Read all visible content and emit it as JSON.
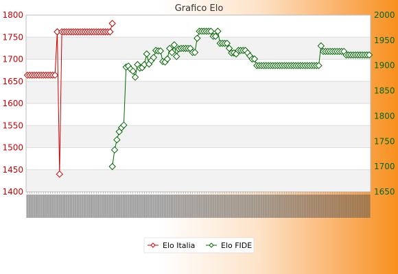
{
  "chart_data": {
    "type": "line",
    "title": "Grafico Elo",
    "xlabel": "",
    "ylabel_left": "",
    "ylabel_right": "",
    "y_left": {
      "lim": [
        1400,
        1800
      ],
      "ticks": [
        1400,
        1450,
        1500,
        1550,
        1600,
        1650,
        1700,
        1750,
        1800
      ]
    },
    "y_right": {
      "lim": [
        1650,
        2000
      ],
      "ticks": [
        1650,
        1700,
        1750,
        1800,
        1850,
        1900,
        1950,
        2000
      ]
    },
    "grid": true,
    "legend_position": "bottom-center",
    "x_count": 150,
    "x_tick_labels_legible": false,
    "series": [
      {
        "name": "Elo Italia",
        "axis": "left",
        "color": "#cc0000",
        "marker": "diamond",
        "points": [
          [
            0,
            1664
          ],
          [
            1,
            1664
          ],
          [
            2,
            1664
          ],
          [
            3,
            1664
          ],
          [
            4,
            1664
          ],
          [
            5,
            1664
          ],
          [
            6,
            1664
          ],
          [
            7,
            1664
          ],
          [
            8,
            1664
          ],
          [
            9,
            1664
          ],
          [
            10,
            1664
          ],
          [
            11,
            1664
          ],
          [
            12,
            1664
          ],
          [
            13,
            1762
          ],
          [
            14,
            1440
          ],
          [
            15,
            1762
          ],
          [
            16,
            1762
          ],
          [
            17,
            1762
          ],
          [
            18,
            1762
          ],
          [
            19,
            1762
          ],
          [
            20,
            1762
          ],
          [
            21,
            1762
          ],
          [
            22,
            1762
          ],
          [
            23,
            1762
          ],
          [
            24,
            1762
          ],
          [
            25,
            1762
          ],
          [
            26,
            1762
          ],
          [
            27,
            1762
          ],
          [
            28,
            1762
          ],
          [
            29,
            1762
          ],
          [
            30,
            1762
          ],
          [
            31,
            1762
          ],
          [
            32,
            1762
          ],
          [
            33,
            1762
          ],
          [
            34,
            1762
          ],
          [
            35,
            1762
          ],
          [
            36,
            1762
          ],
          [
            37,
            1781
          ]
        ]
      },
      {
        "name": "Elo FIDE",
        "axis": "right",
        "color": "#006600",
        "marker": "diamond",
        "points": [
          [
            37,
            1700
          ],
          [
            38,
            1733
          ],
          [
            39,
            1753
          ],
          [
            40,
            1769
          ],
          [
            41,
            1777
          ],
          [
            42,
            1782
          ],
          [
            43,
            1897
          ],
          [
            44,
            1899
          ],
          [
            45,
            1893
          ],
          [
            46,
            1889
          ],
          [
            47,
            1877
          ],
          [
            48,
            1902
          ],
          [
            49,
            1895
          ],
          [
            50,
            1896
          ],
          [
            51,
            1902
          ],
          [
            52,
            1923
          ],
          [
            53,
            1903
          ],
          [
            54,
            1910
          ],
          [
            55,
            1916
          ],
          [
            56,
            1930
          ],
          [
            57,
            1929
          ],
          [
            58,
            1929
          ],
          [
            59,
            1908
          ],
          [
            60,
            1907
          ],
          [
            61,
            1913
          ],
          [
            62,
            1934
          ],
          [
            63,
            1926
          ],
          [
            64,
            1941
          ],
          [
            65,
            1918
          ],
          [
            66,
            1933
          ],
          [
            67,
            1934
          ],
          [
            68,
            1934
          ],
          [
            69,
            1934
          ],
          [
            70,
            1934
          ],
          [
            71,
            1934
          ],
          [
            72,
            1926
          ],
          [
            73,
            1926
          ],
          [
            74,
            1954
          ],
          [
            75,
            1968
          ],
          [
            76,
            1968
          ],
          [
            77,
            1968
          ],
          [
            78,
            1968
          ],
          [
            79,
            1968
          ],
          [
            80,
            1968
          ],
          [
            81,
            1958
          ],
          [
            82,
            1958
          ],
          [
            83,
            1968
          ],
          [
            84,
            1944
          ],
          [
            85,
            1944
          ],
          [
            86,
            1944
          ],
          [
            87,
            1944
          ],
          [
            88,
            1934
          ],
          [
            89,
            1925
          ],
          [
            90,
            1925
          ],
          [
            91,
            1923
          ],
          [
            92,
            1930
          ],
          [
            93,
            1930
          ],
          [
            94,
            1930
          ],
          [
            95,
            1930
          ],
          [
            96,
            1925
          ],
          [
            97,
            1919
          ],
          [
            98,
            1913
          ],
          [
            99,
            1913
          ],
          [
            100,
            1900
          ]
        ],
        "plateau": {
          "x_from": 100,
          "x_to": 127,
          "y": 1900
        },
        "tail": [
          [
            128,
            1939
          ],
          [
            129,
            1928
          ],
          [
            130,
            1928
          ],
          [
            131,
            1928
          ],
          [
            132,
            1928
          ],
          [
            133,
            1928
          ],
          [
            134,
            1928
          ],
          [
            135,
            1928
          ],
          [
            136,
            1928
          ],
          [
            137,
            1928
          ],
          [
            138,
            1928
          ],
          [
            139,
            1921
          ],
          [
            140,
            1921
          ],
          [
            141,
            1921
          ],
          [
            142,
            1921
          ],
          [
            143,
            1921
          ],
          [
            144,
            1921
          ],
          [
            145,
            1921
          ],
          [
            146,
            1921
          ],
          [
            147,
            1921
          ],
          [
            148,
            1921
          ],
          [
            149,
            1921
          ]
        ]
      }
    ]
  }
}
